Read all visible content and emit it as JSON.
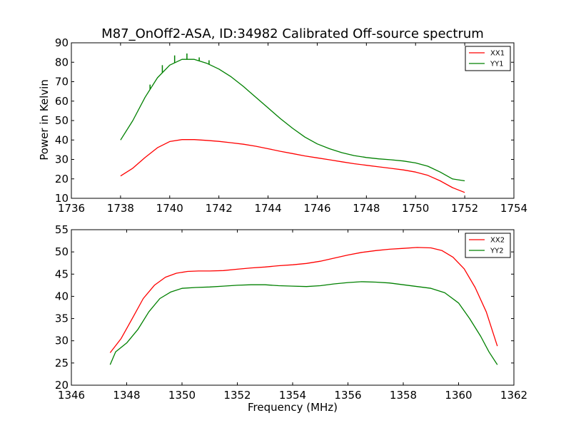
{
  "chart_data": [
    {
      "type": "line",
      "title": "M87_OnOff2-ASA, ID:34982 Calibrated Off-source spectrum",
      "xlabel": "",
      "ylabel": "Power in Kelvin",
      "xlim": [
        1736,
        1754
      ],
      "ylim": [
        10,
        90
      ],
      "xticks": [
        "1736",
        "1738",
        "1740",
        "1742",
        "1744",
        "1746",
        "1748",
        "1750",
        "1752",
        "1754"
      ],
      "yticks": [
        "10",
        "20",
        "30",
        "40",
        "50",
        "60",
        "70",
        "80",
        "90"
      ],
      "grid": false,
      "legend_position": "top-right",
      "series": [
        {
          "name": "XX1",
          "color": "#ff0000",
          "points": [
            [
              1738.0,
              21.5
            ],
            [
              1738.5,
              25.5
            ],
            [
              1739.0,
              31.0
            ],
            [
              1739.5,
              36.0
            ],
            [
              1740.0,
              39.2
            ],
            [
              1740.5,
              40.2
            ],
            [
              1741.0,
              40.2
            ],
            [
              1741.5,
              39.8
            ],
            [
              1742.0,
              39.3
            ],
            [
              1742.5,
              38.6
            ],
            [
              1743.0,
              37.8
            ],
            [
              1743.5,
              36.8
            ],
            [
              1744.0,
              35.5
            ],
            [
              1744.5,
              34.2
            ],
            [
              1745.0,
              33.0
            ],
            [
              1745.5,
              31.8
            ],
            [
              1746.0,
              30.8
            ],
            [
              1746.5,
              29.8
            ],
            [
              1747.0,
              28.8
            ],
            [
              1747.5,
              27.8
            ],
            [
              1748.0,
              27.0
            ],
            [
              1748.5,
              26.2
            ],
            [
              1749.0,
              25.4
            ],
            [
              1749.5,
              24.6
            ],
            [
              1750.0,
              23.5
            ],
            [
              1750.5,
              21.8
            ],
            [
              1751.0,
              19.0
            ],
            [
              1751.5,
              15.5
            ],
            [
              1752.0,
              13.0
            ]
          ]
        },
        {
          "name": "YY1",
          "color": "#008000",
          "points": [
            [
              1738.0,
              40.0
            ],
            [
              1738.5,
              50.0
            ],
            [
              1739.0,
              62.0
            ],
            [
              1739.5,
              72.0
            ],
            [
              1740.0,
              78.5
            ],
            [
              1740.5,
              81.5
            ],
            [
              1741.0,
              81.5
            ],
            [
              1741.5,
              79.5
            ],
            [
              1742.0,
              76.5
            ],
            [
              1742.5,
              72.5
            ],
            [
              1743.0,
              67.5
            ],
            [
              1743.5,
              62.0
            ],
            [
              1744.0,
              56.5
            ],
            [
              1744.5,
              51.0
            ],
            [
              1745.0,
              46.0
            ],
            [
              1745.5,
              41.5
            ],
            [
              1746.0,
              38.0
            ],
            [
              1746.5,
              35.5
            ],
            [
              1747.0,
              33.5
            ],
            [
              1747.5,
              32.0
            ],
            [
              1748.0,
              31.0
            ],
            [
              1748.5,
              30.3
            ],
            [
              1749.0,
              29.8
            ],
            [
              1749.5,
              29.2
            ],
            [
              1750.0,
              28.2
            ],
            [
              1750.5,
              26.5
            ],
            [
              1751.0,
              23.5
            ],
            [
              1751.5,
              20.0
            ],
            [
              1752.0,
              19.0
            ]
          ],
          "spikes": [
            [
              1739.2,
              68.5
            ],
            [
              1739.7,
              78.5
            ],
            [
              1740.2,
              83.5
            ],
            [
              1740.7,
              84.5
            ],
            [
              1741.2,
              82.5
            ],
            [
              1741.6,
              81.0
            ]
          ]
        }
      ]
    },
    {
      "type": "line",
      "title": "",
      "xlabel": "Frequency (MHz)",
      "ylabel": "",
      "xlim": [
        1346,
        1362
      ],
      "ylim": [
        20,
        55
      ],
      "xticks": [
        "1346",
        "1348",
        "1350",
        "1352",
        "1354",
        "1356",
        "1358",
        "1360",
        "1362"
      ],
      "yticks": [
        "20",
        "25",
        "30",
        "35",
        "40",
        "45",
        "50",
        "55"
      ],
      "grid": false,
      "legend_position": "top-right",
      "series": [
        {
          "name": "XX2",
          "color": "#ff0000",
          "points": [
            [
              1347.4,
              27.3
            ],
            [
              1347.8,
              30.5
            ],
            [
              1348.2,
              35.0
            ],
            [
              1348.6,
              39.5
            ],
            [
              1349.0,
              42.5
            ],
            [
              1349.4,
              44.3
            ],
            [
              1349.8,
              45.2
            ],
            [
              1350.2,
              45.6
            ],
            [
              1350.6,
              45.7
            ],
            [
              1351.0,
              45.7
            ],
            [
              1351.5,
              45.8
            ],
            [
              1352.0,
              46.1
            ],
            [
              1352.5,
              46.4
            ],
            [
              1353.0,
              46.6
            ],
            [
              1353.5,
              46.9
            ],
            [
              1354.0,
              47.1
            ],
            [
              1354.5,
              47.4
            ],
            [
              1355.0,
              47.9
            ],
            [
              1355.5,
              48.6
            ],
            [
              1356.0,
              49.3
            ],
            [
              1356.5,
              49.9
            ],
            [
              1357.0,
              50.3
            ],
            [
              1357.5,
              50.6
            ],
            [
              1358.0,
              50.8
            ],
            [
              1358.5,
              51.0
            ],
            [
              1359.0,
              50.9
            ],
            [
              1359.4,
              50.3
            ],
            [
              1359.8,
              48.8
            ],
            [
              1360.2,
              46.2
            ],
            [
              1360.6,
              42.0
            ],
            [
              1361.0,
              36.5
            ],
            [
              1361.4,
              28.8
            ]
          ]
        },
        {
          "name": "YY2",
          "color": "#008000",
          "points": [
            [
              1347.4,
              24.6
            ],
            [
              1347.6,
              27.5
            ],
            [
              1348.0,
              29.5
            ],
            [
              1348.4,
              32.5
            ],
            [
              1348.8,
              36.5
            ],
            [
              1349.2,
              39.5
            ],
            [
              1349.6,
              41.0
            ],
            [
              1350.0,
              41.8
            ],
            [
              1350.5,
              42.0
            ],
            [
              1351.0,
              42.1
            ],
            [
              1351.5,
              42.3
            ],
            [
              1352.0,
              42.5
            ],
            [
              1352.5,
              42.6
            ],
            [
              1353.0,
              42.6
            ],
            [
              1353.5,
              42.4
            ],
            [
              1354.0,
              42.3
            ],
            [
              1354.5,
              42.2
            ],
            [
              1355.0,
              42.4
            ],
            [
              1355.5,
              42.8
            ],
            [
              1356.0,
              43.1
            ],
            [
              1356.5,
              43.3
            ],
            [
              1357.0,
              43.2
            ],
            [
              1357.5,
              43.0
            ],
            [
              1358.0,
              42.6
            ],
            [
              1358.5,
              42.2
            ],
            [
              1359.0,
              41.8
            ],
            [
              1359.5,
              40.8
            ],
            [
              1360.0,
              38.5
            ],
            [
              1360.4,
              35.0
            ],
            [
              1360.8,
              31.0
            ],
            [
              1361.1,
              27.5
            ],
            [
              1361.4,
              24.6
            ]
          ]
        }
      ]
    }
  ]
}
